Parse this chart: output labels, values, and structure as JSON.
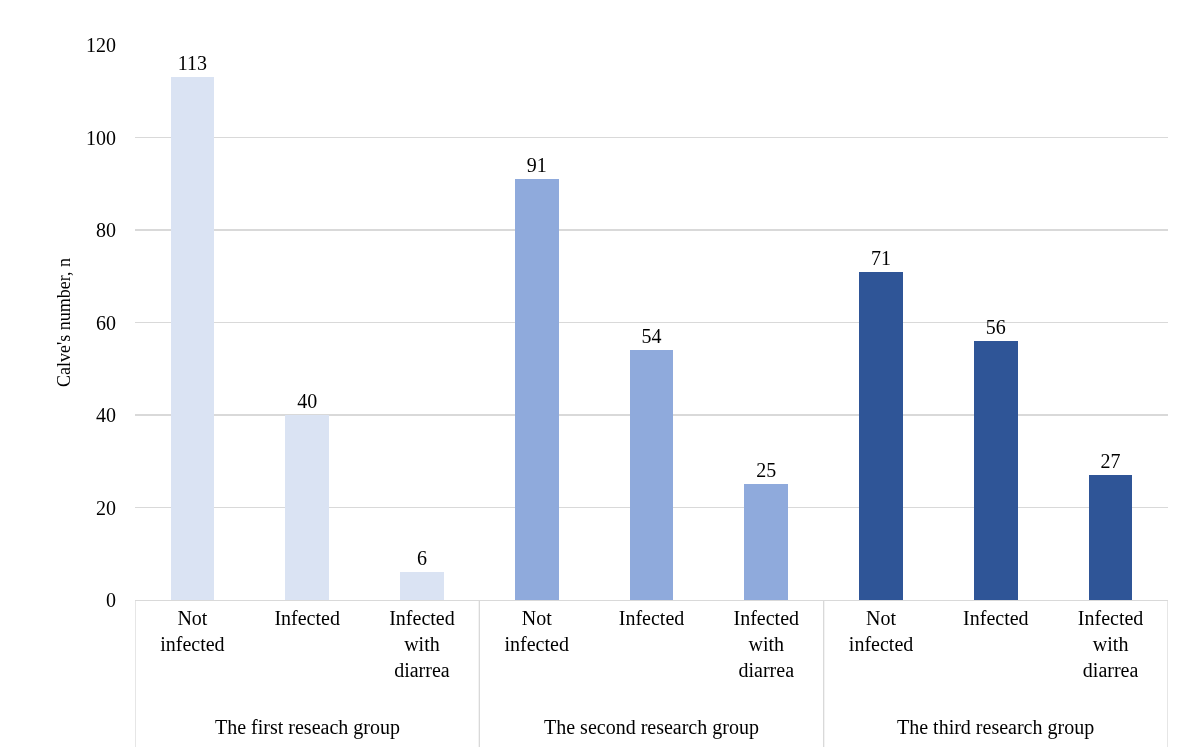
{
  "chart_data": {
    "type": "bar",
    "ylabel": "Calve's number, n",
    "categories": [
      "Not infected",
      "Infected",
      "Infected with diarrea",
      "Not infected",
      "Infected",
      "Infected with diarrea",
      "Not infected",
      "Infected",
      "Infected with diarrea"
    ],
    "values": [
      113,
      40,
      6,
      91,
      54,
      25,
      71,
      56,
      27
    ],
    "colors": [
      "#dae3f3",
      "#dae3f3",
      "#dae3f3",
      "#8faadc",
      "#8faadc",
      "#8faadc",
      "#2f5597",
      "#2f5597",
      "#2f5597"
    ],
    "annotations": [
      "The first reseach group",
      "The second research group",
      "The third research group"
    ],
    "ylim": [
      0,
      120
    ],
    "yticks": [
      0,
      20,
      40,
      60,
      80,
      100,
      120
    ],
    "grid": "y",
    "data_labels": true,
    "legend": false
  }
}
